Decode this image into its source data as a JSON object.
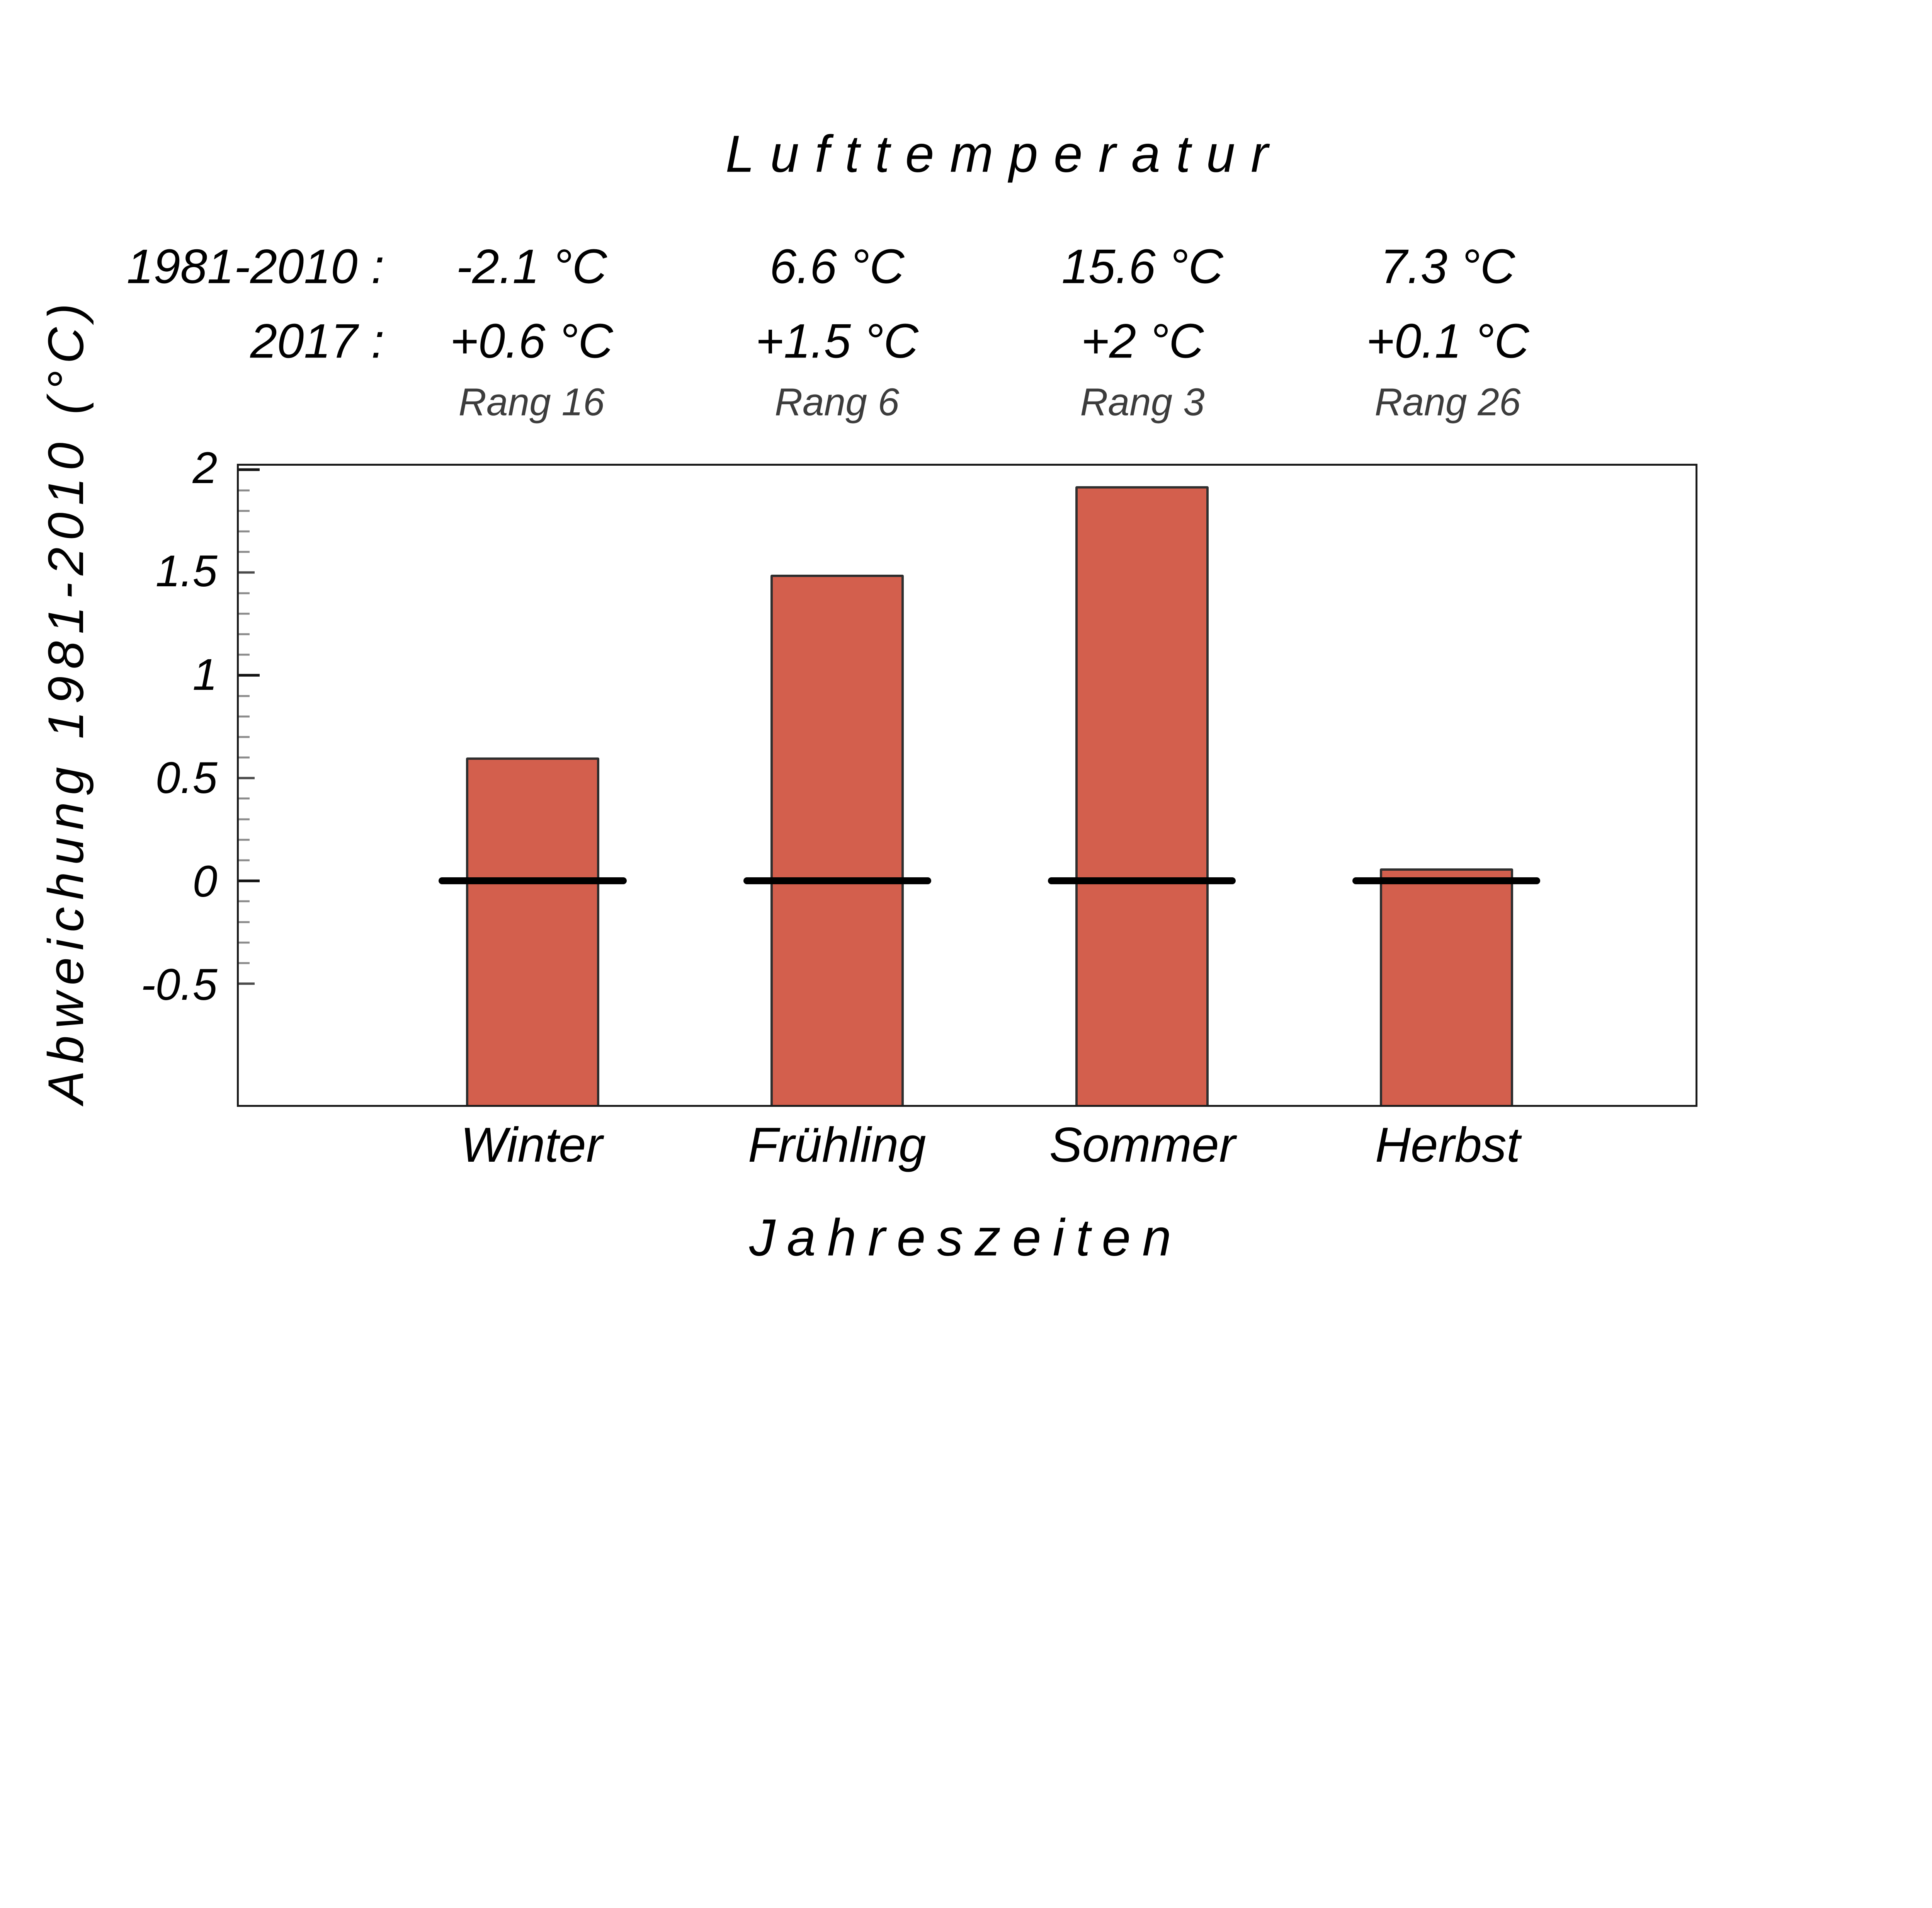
{
  "title": "Lufttemperatur",
  "stats_table": {
    "row_labels": [
      "1981-2010 :",
      "2017 :"
    ],
    "columns": [
      {
        "season": "Winter",
        "mean_1981_2010": "-2.1 °C",
        "anomaly_2017": "+0.6 °C",
        "rank_label": "Rang 16"
      },
      {
        "season": "Frühling",
        "mean_1981_2010": "6.6 °C",
        "anomaly_2017": "+1.5 °C",
        "rank_label": "Rang 6"
      },
      {
        "season": "Sommer",
        "mean_1981_2010": "15.6 °C",
        "anomaly_2017": "+2 °C",
        "rank_label": "Rang 3"
      },
      {
        "season": "Herbst",
        "mean_1981_2010": "7.3 °C",
        "anomaly_2017": "+0.1 °C",
        "rank_label": "Rang 26"
      }
    ]
  },
  "chart_data": {
    "type": "bar",
    "title": "Lufttemperatur",
    "xlabel": "Jahreszeiten",
    "ylabel": "Abweichung 1981-2010 (°C)",
    "categories": [
      "Winter",
      "Frühling",
      "Sommer",
      "Herbst"
    ],
    "values": [
      0.6,
      1.5,
      2,
      0.1
    ],
    "bar_tops_as_drawn": [
      0.6,
      1.49,
      1.92,
      0.06
    ],
    "baseline": 0,
    "bars_extend_to_plot_bottom": true,
    "reference_period_means_c": [
      -2.1,
      6.6,
      15.6,
      7.3
    ],
    "ranks": [
      16,
      6,
      3,
      26
    ],
    "ylim_drawn": [
      -1.09,
      2.02
    ],
    "ytick_values": [
      2,
      1.5,
      1,
      0.5,
      0,
      -0.5
    ],
    "ytick_labels": [
      "2",
      "1.5",
      "1",
      "0.5",
      "0",
      "-0.5"
    ],
    "minor_tick_step": 0.1,
    "minor_tick_range": [
      -0.5,
      2.0
    ],
    "grid": false,
    "legend": false,
    "colors": {
      "bar_fill": "#d35f4d",
      "bar_border": "#2f2f2f",
      "zero_line": "#000000",
      "axis": "#1a1a1a",
      "minor_tick": "#8a8a8a",
      "mid_tick": "#4a4a4a",
      "rank_text": "#3c3c3c",
      "text": "#000000"
    }
  }
}
